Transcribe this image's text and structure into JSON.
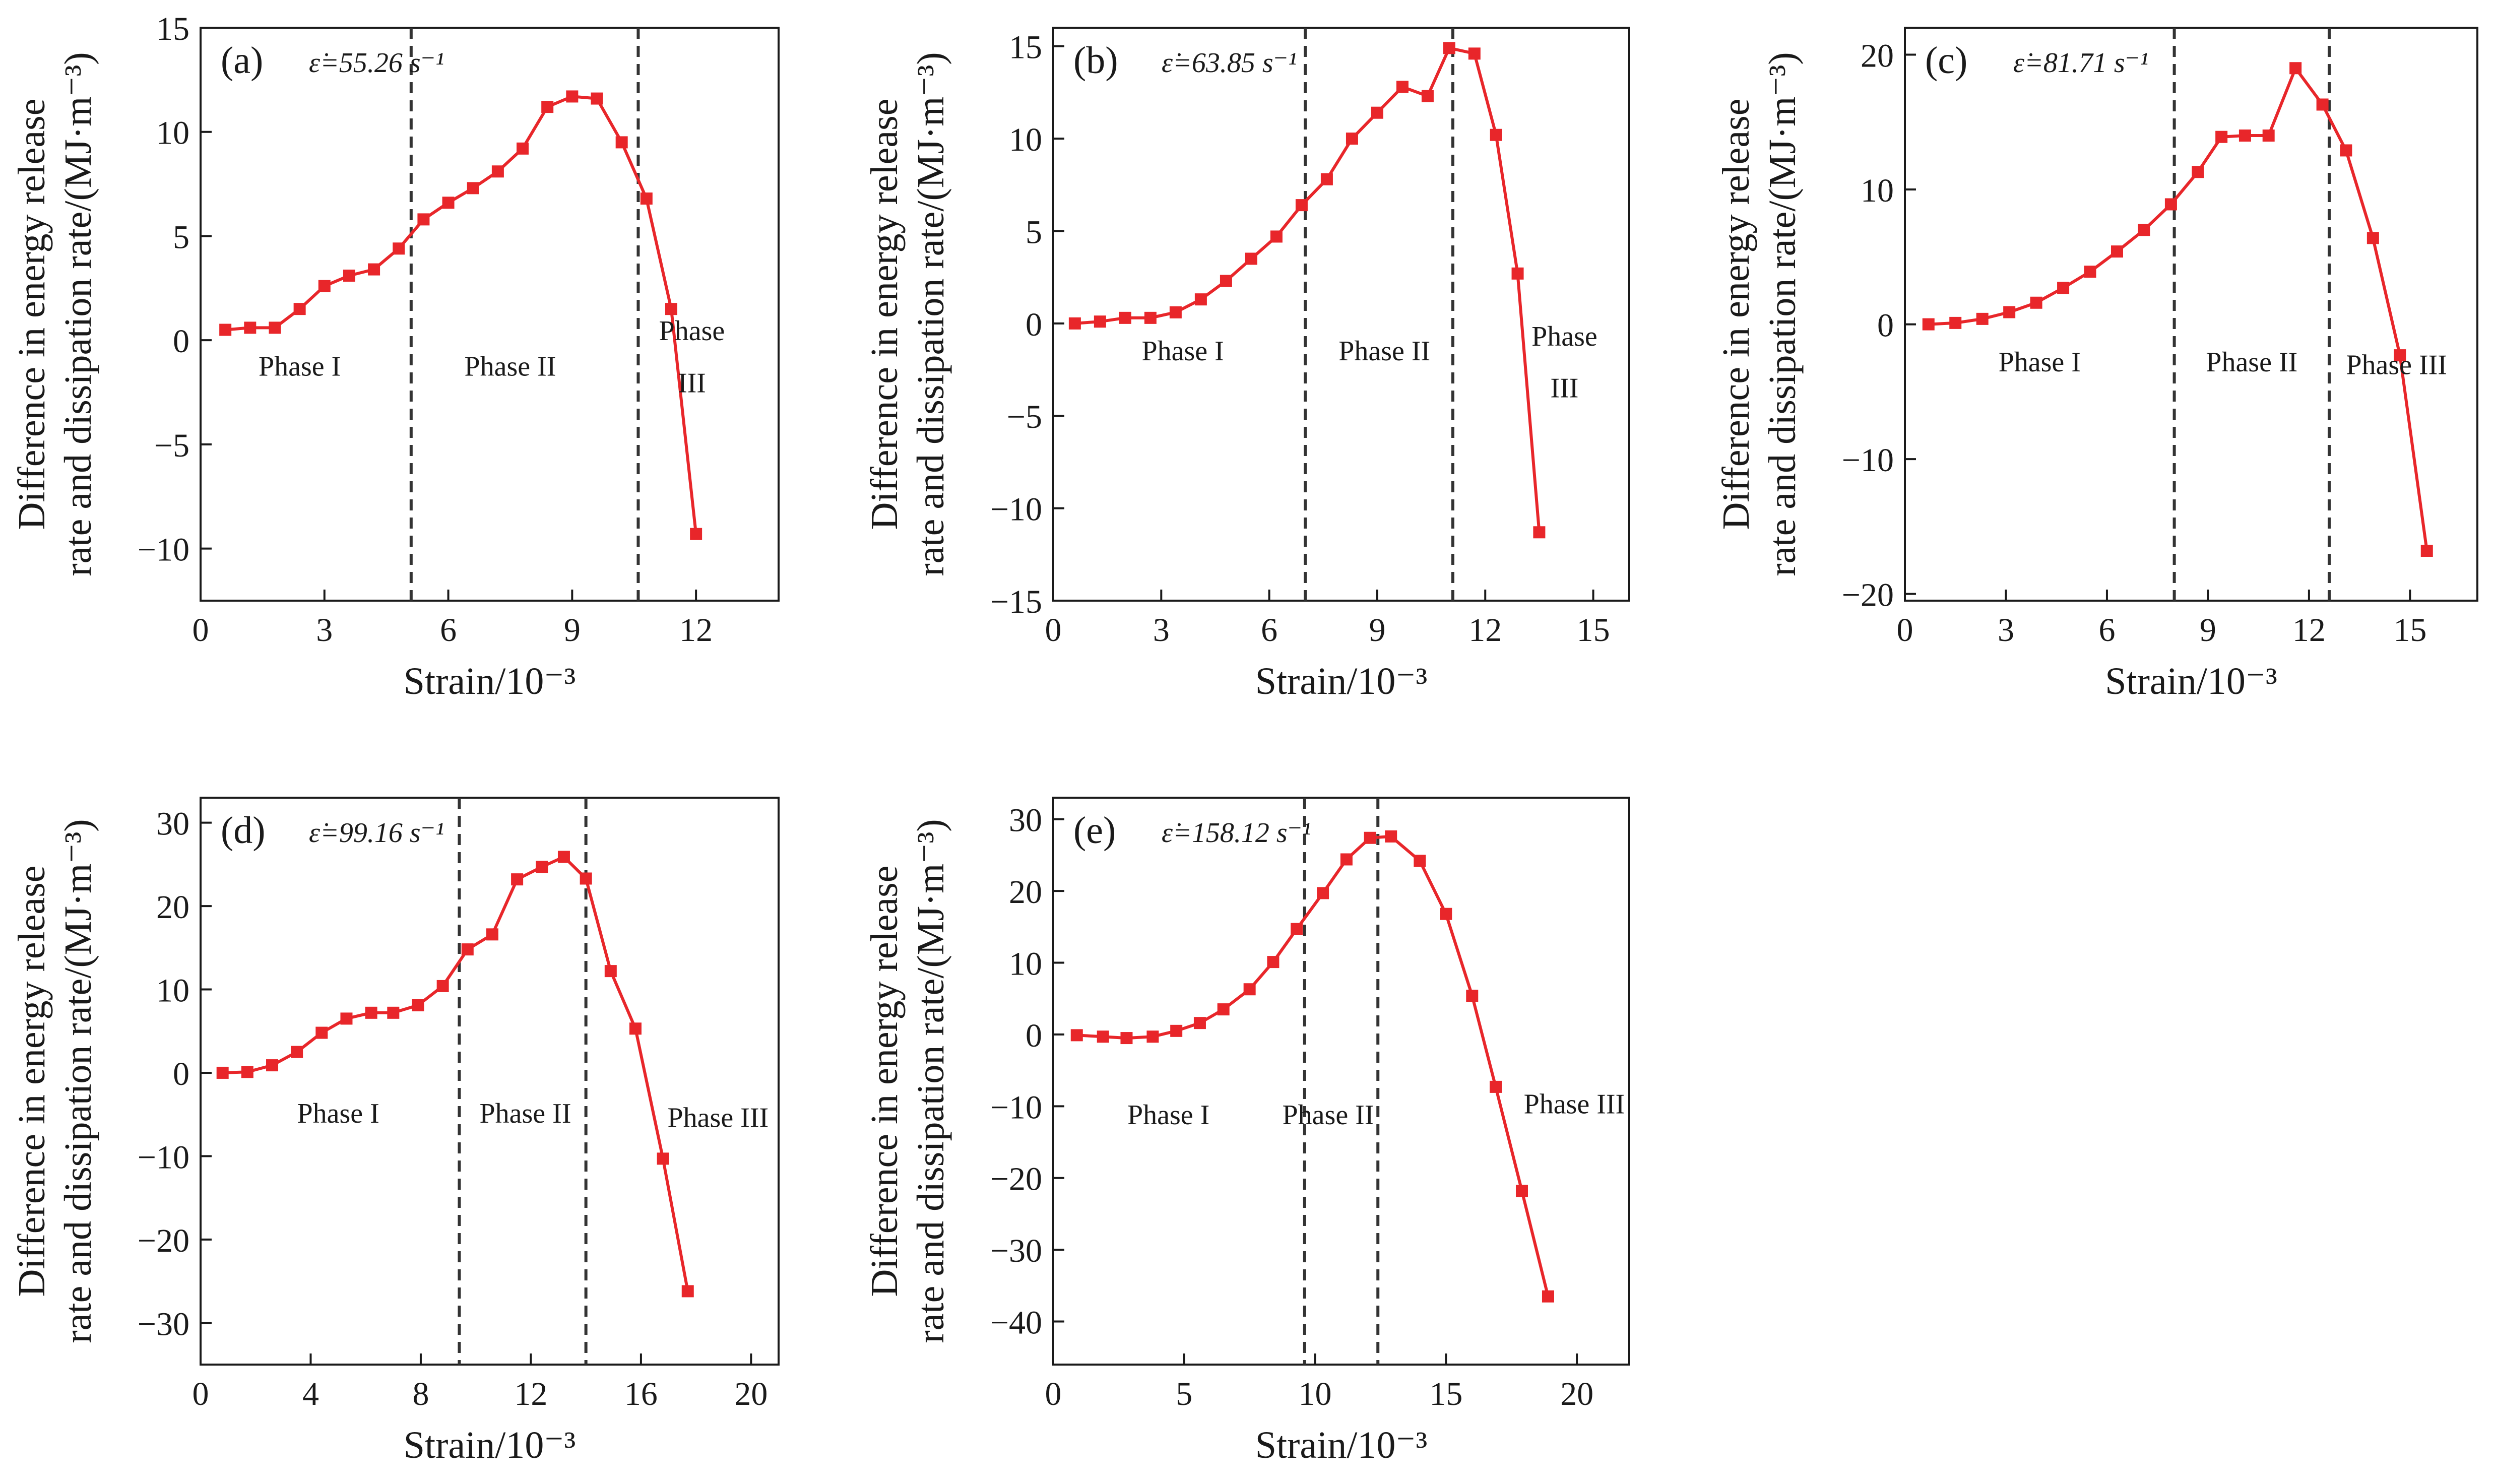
{
  "chart_data": [
    {
      "type": "line",
      "panel_label": "(a)",
      "rate_label": "ε̇=55.26 s⁻¹",
      "xlabel": "Strain/10⁻³",
      "ylabel_line1": "Difference in energy release",
      "ylabel_line2": "rate and dissipation rate/(MJ·m⁻³)",
      "xlim": [
        0,
        14
      ],
      "ylim": [
        -12.5,
        15
      ],
      "xticks": [
        0,
        3,
        6,
        9,
        12
      ],
      "yticks": [
        15,
        10,
        5,
        0,
        -5,
        -10
      ],
      "x": [
        0.6,
        1.2,
        1.8,
        2.4,
        3.0,
        3.6,
        4.2,
        4.8,
        5.4,
        6.0,
        6.6,
        7.2,
        7.8,
        8.4,
        9.0,
        9.6,
        10.2,
        10.8,
        11.4,
        12.0
      ],
      "y": [
        0.5,
        0.6,
        0.6,
        1.5,
        2.6,
        3.1,
        3.4,
        4.4,
        5.8,
        6.6,
        7.3,
        8.1,
        9.2,
        11.2,
        11.7,
        11.6,
        9.5,
        6.8,
        1.5,
        -9.3
      ],
      "dividers": [
        5.1,
        10.6
      ],
      "phases": [
        {
          "label": "Phase I",
          "x": 2.4,
          "y": -1.7
        },
        {
          "label": "Phase II",
          "x": 7.5,
          "y": -1.7
        },
        {
          "label": "Phase",
          "x": 11.9,
          "y": 0.0
        },
        {
          "label": "III",
          "x": 11.9,
          "y": -2.5
        }
      ]
    },
    {
      "type": "line",
      "panel_label": "(b)",
      "rate_label": "ε̇=63.85 s⁻¹",
      "xlabel": "Strain/10⁻³",
      "ylabel_line1": "Difference in energy release",
      "ylabel_line2": "rate and dissipation rate/(MJ·m⁻³)",
      "xlim": [
        0,
        16
      ],
      "ylim": [
        -15,
        16
      ],
      "xticks": [
        0,
        3,
        6,
        9,
        12,
        15
      ],
      "yticks": [
        15,
        10,
        5,
        0,
        -5,
        -10,
        -15
      ],
      "x": [
        0.6,
        1.3,
        2.0,
        2.7,
        3.4,
        4.1,
        4.8,
        5.5,
        6.2,
        6.9,
        7.6,
        8.3,
        9.0,
        9.7,
        10.4,
        11.0,
        11.7,
        12.3,
        12.9,
        13.5
      ],
      "y": [
        0.0,
        0.1,
        0.3,
        0.3,
        0.6,
        1.3,
        2.3,
        3.5,
        4.7,
        6.4,
        7.8,
        10.0,
        11.4,
        12.8,
        12.3,
        14.9,
        14.6,
        10.2,
        2.7,
        -11.3
      ],
      "dividers": [
        7.0,
        11.1
      ],
      "phases": [
        {
          "label": "Phase I",
          "x": 3.6,
          "y": -2.0
        },
        {
          "label": "Phase II",
          "x": 9.2,
          "y": -2.0
        },
        {
          "label": "Phase",
          "x": 14.2,
          "y": -1.2
        },
        {
          "label": "III",
          "x": 14.2,
          "y": -4.0
        }
      ]
    },
    {
      "type": "line",
      "panel_label": "(c)",
      "rate_label": "ε̇=81.71 s⁻¹",
      "xlabel": "Strain/10⁻³",
      "ylabel_line1": "Difference in energy release",
      "ylabel_line2": "rate and dissipation rate/(MJ·m⁻³)",
      "xlim": [
        0,
        17
      ],
      "ylim": [
        -20.5,
        22
      ],
      "xticks": [
        0,
        3,
        6,
        9,
        12,
        15
      ],
      "yticks": [
        20,
        10,
        0,
        -10,
        -20
      ],
      "x": [
        0.7,
        1.5,
        2.3,
        3.1,
        3.9,
        4.7,
        5.5,
        6.3,
        7.1,
        7.9,
        8.7,
        9.4,
        10.1,
        10.8,
        11.6,
        12.4,
        13.1,
        13.9,
        14.7,
        15.5
      ],
      "y": [
        0.0,
        0.1,
        0.4,
        0.9,
        1.6,
        2.7,
        3.9,
        5.4,
        7.0,
        8.9,
        11.3,
        13.9,
        14.0,
        14.0,
        19.0,
        16.3,
        12.9,
        6.4,
        -2.3,
        -16.8
      ],
      "dividers": [
        8.0,
        12.6
      ],
      "phases": [
        {
          "label": "Phase I",
          "x": 4.0,
          "y": -3.5
        },
        {
          "label": "Phase II",
          "x": 10.3,
          "y": -3.5
        },
        {
          "label": "Phase III",
          "x": 14.6,
          "y": -3.7
        }
      ]
    },
    {
      "type": "line",
      "panel_label": "(d)",
      "rate_label": "ε̇=99.16 s⁻¹",
      "xlabel": "Strain/10⁻³",
      "ylabel_line1": "Difference in energy release",
      "ylabel_line2": "rate and dissipation rate/(MJ·m⁻³)",
      "xlim": [
        0,
        21
      ],
      "ylim": [
        -35,
        33
      ],
      "xticks": [
        0,
        4,
        8,
        12,
        16,
        20
      ],
      "yticks": [
        30,
        20,
        10,
        0,
        -10,
        -20,
        -30
      ],
      "x": [
        0.8,
        1.7,
        2.6,
        3.5,
        4.4,
        5.3,
        6.2,
        7.0,
        7.9,
        8.8,
        9.7,
        10.6,
        11.5,
        12.4,
        13.2,
        14.0,
        14.9,
        15.8,
        16.8,
        17.7
      ],
      "y": [
        0.0,
        0.1,
        0.9,
        2.5,
        4.8,
        6.5,
        7.2,
        7.2,
        8.1,
        10.4,
        14.8,
        16.6,
        23.2,
        24.7,
        25.9,
        23.3,
        12.2,
        5.3,
        -10.3,
        -26.2
      ],
      "dividers": [
        9.4,
        14.0
      ],
      "phases": [
        {
          "label": "Phase I",
          "x": 5.0,
          "y": -6.0
        },
        {
          "label": "Phase II",
          "x": 11.8,
          "y": -6.0
        },
        {
          "label": "Phase III",
          "x": 18.8,
          "y": -6.5
        }
      ]
    },
    {
      "type": "line",
      "panel_label": "(e)",
      "rate_label": "ε̇=158.12 s⁻¹",
      "xlabel": "Strain/10⁻³",
      "ylabel_line1": "Difference in energy release",
      "ylabel_line2": "rate and dissipation rate/(MJ·m⁻³)",
      "xlim": [
        0,
        22
      ],
      "ylim": [
        -46,
        33
      ],
      "xticks": [
        0,
        5,
        10,
        15,
        20
      ],
      "yticks": [
        30,
        20,
        10,
        0,
        -10,
        -20,
        -30,
        -40
      ],
      "x": [
        0.9,
        1.9,
        2.8,
        3.8,
        4.7,
        5.6,
        6.5,
        7.5,
        8.4,
        9.3,
        10.3,
        11.2,
        12.1,
        12.9,
        14.0,
        15.0,
        16.0,
        16.9,
        17.9,
        18.9
      ],
      "y": [
        -0.1,
        -0.3,
        -0.5,
        -0.3,
        0.5,
        1.6,
        3.5,
        6.3,
        10.1,
        14.7,
        19.7,
        24.4,
        27.4,
        27.6,
        24.2,
        16.8,
        5.4,
        -7.3,
        -21.8,
        -36.5
      ],
      "dividers": [
        9.6,
        12.4
      ],
      "phases": [
        {
          "label": "Phase I",
          "x": 4.4,
          "y": -12.5
        },
        {
          "label": "Phase II",
          "x": 10.5,
          "y": -12.5
        },
        {
          "label": "Phase III",
          "x": 19.9,
          "y": -11.0
        }
      ]
    }
  ],
  "colors": {
    "series": "#e8262a",
    "axis": "#1a1a1a",
    "divider": "#333333"
  }
}
